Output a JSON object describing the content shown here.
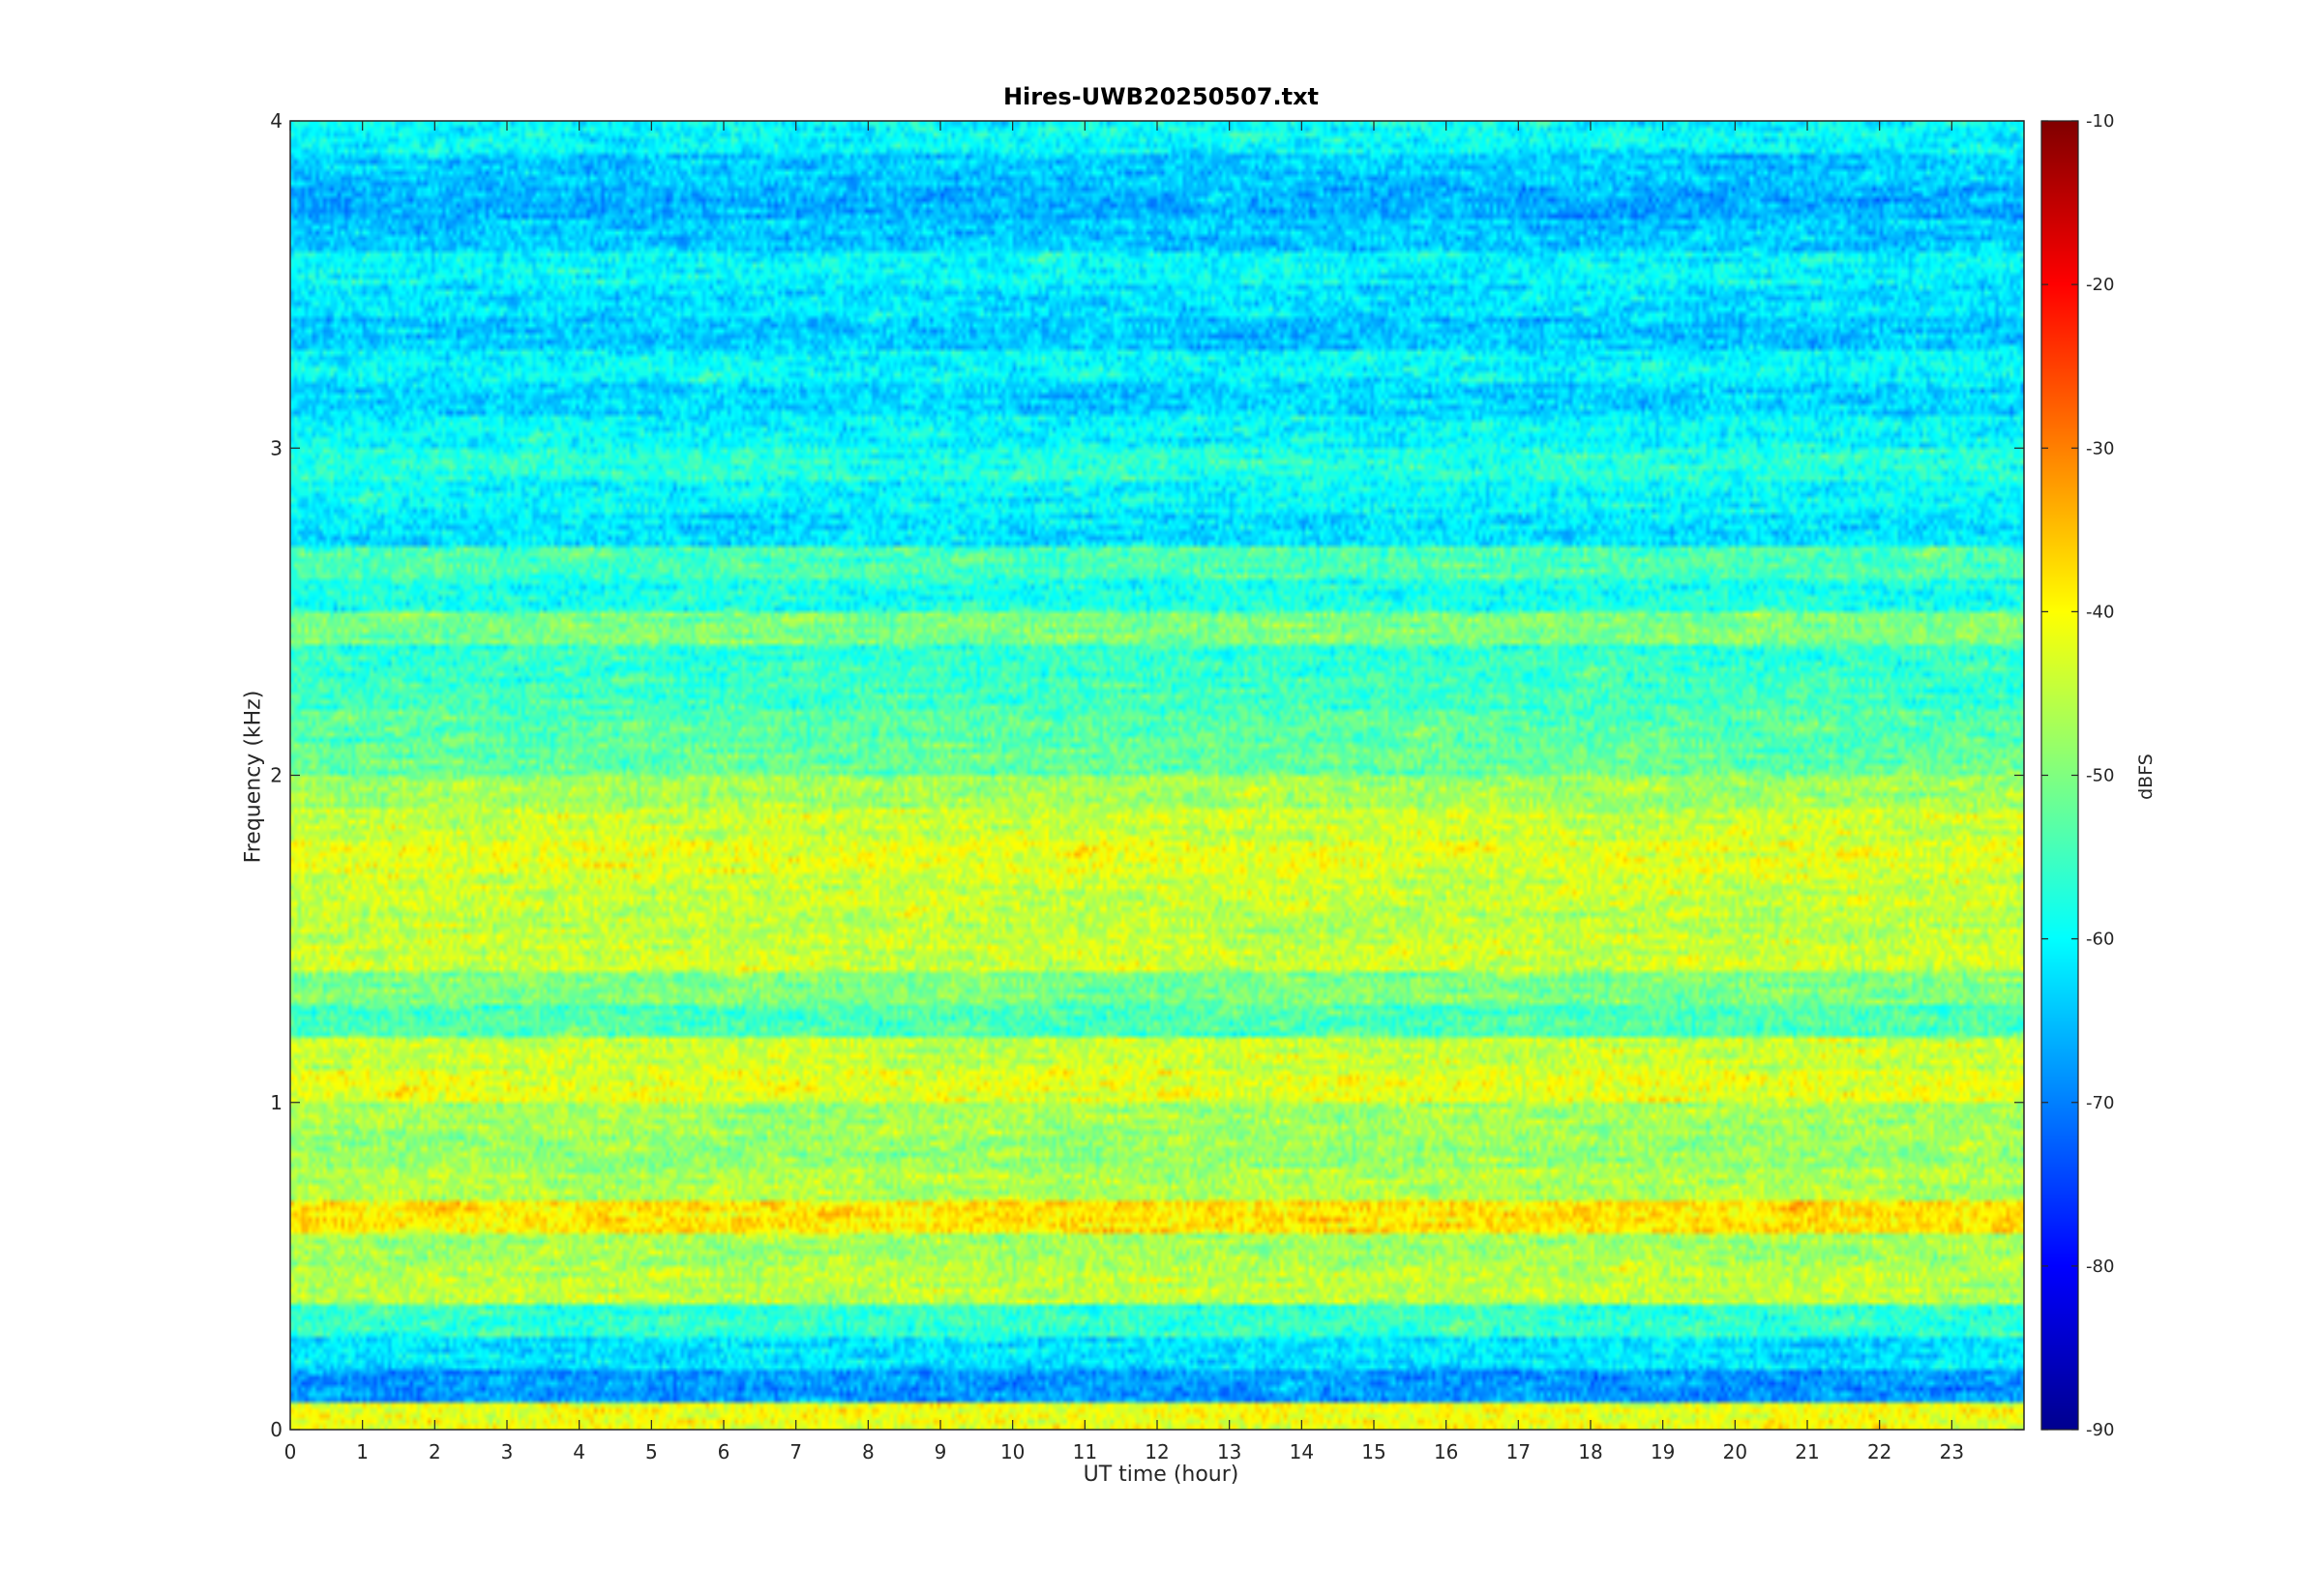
{
  "chart_data": {
    "type": "heatmap",
    "title": "Hires-UWB20250507.txt",
    "xlabel": "UT time (hour)",
    "ylabel": "Frequency (kHz)",
    "xlim": [
      0,
      24
    ],
    "ylim": [
      0,
      4
    ],
    "xticks": [
      0,
      1,
      2,
      3,
      4,
      5,
      6,
      7,
      8,
      9,
      10,
      11,
      12,
      13,
      14,
      15,
      16,
      17,
      18,
      19,
      20,
      21,
      22,
      23
    ],
    "yticks": [
      0,
      1,
      2,
      3,
      4
    ],
    "colorbar": {
      "label": "dBFS",
      "range": [
        -90,
        -10
      ],
      "ticks": [
        -90,
        -80,
        -70,
        -60,
        -50,
        -40,
        -30,
        -20,
        -10
      ],
      "colormap": "jet"
    },
    "frequency_band_levels_dbfs": [
      {
        "freq_khz": 0.04,
        "level": -41
      },
      {
        "freq_khz": 0.14,
        "level": -68
      },
      {
        "freq_khz": 0.23,
        "level": -62
      },
      {
        "freq_khz": 0.33,
        "level": -56
      },
      {
        "freq_khz": 0.45,
        "level": -45
      },
      {
        "freq_khz": 0.55,
        "level": -47
      },
      {
        "freq_khz": 0.65,
        "level": -38
      },
      {
        "freq_khz": 0.75,
        "level": -46
      },
      {
        "freq_khz": 0.85,
        "level": -48
      },
      {
        "freq_khz": 0.95,
        "level": -47
      },
      {
        "freq_khz": 1.05,
        "level": -42
      },
      {
        "freq_khz": 1.15,
        "level": -44
      },
      {
        "freq_khz": 1.25,
        "level": -54
      },
      {
        "freq_khz": 1.35,
        "level": -50
      },
      {
        "freq_khz": 1.45,
        "level": -44
      },
      {
        "freq_khz": 1.55,
        "level": -45
      },
      {
        "freq_khz": 1.65,
        "level": -44
      },
      {
        "freq_khz": 1.75,
        "level": -42
      },
      {
        "freq_khz": 1.85,
        "level": -44
      },
      {
        "freq_khz": 1.95,
        "level": -47
      },
      {
        "freq_khz": 2.05,
        "level": -52
      },
      {
        "freq_khz": 2.15,
        "level": -53
      },
      {
        "freq_khz": 2.25,
        "level": -55
      },
      {
        "freq_khz": 2.35,
        "level": -56
      },
      {
        "freq_khz": 2.45,
        "level": -50
      },
      {
        "freq_khz": 2.55,
        "level": -58
      },
      {
        "freq_khz": 2.65,
        "level": -54
      },
      {
        "freq_khz": 2.75,
        "level": -62
      },
      {
        "freq_khz": 2.85,
        "level": -60
      },
      {
        "freq_khz": 2.95,
        "level": -57
      },
      {
        "freq_khz": 3.05,
        "level": -60
      },
      {
        "freq_khz": 3.15,
        "level": -63
      },
      {
        "freq_khz": 3.25,
        "level": -60
      },
      {
        "freq_khz": 3.35,
        "level": -64
      },
      {
        "freq_khz": 3.45,
        "level": -62
      },
      {
        "freq_khz": 3.55,
        "level": -60
      },
      {
        "freq_khz": 3.65,
        "level": -64
      },
      {
        "freq_khz": 3.75,
        "level": -66
      },
      {
        "freq_khz": 3.85,
        "level": -64
      },
      {
        "freq_khz": 3.95,
        "level": -60
      }
    ]
  }
}
